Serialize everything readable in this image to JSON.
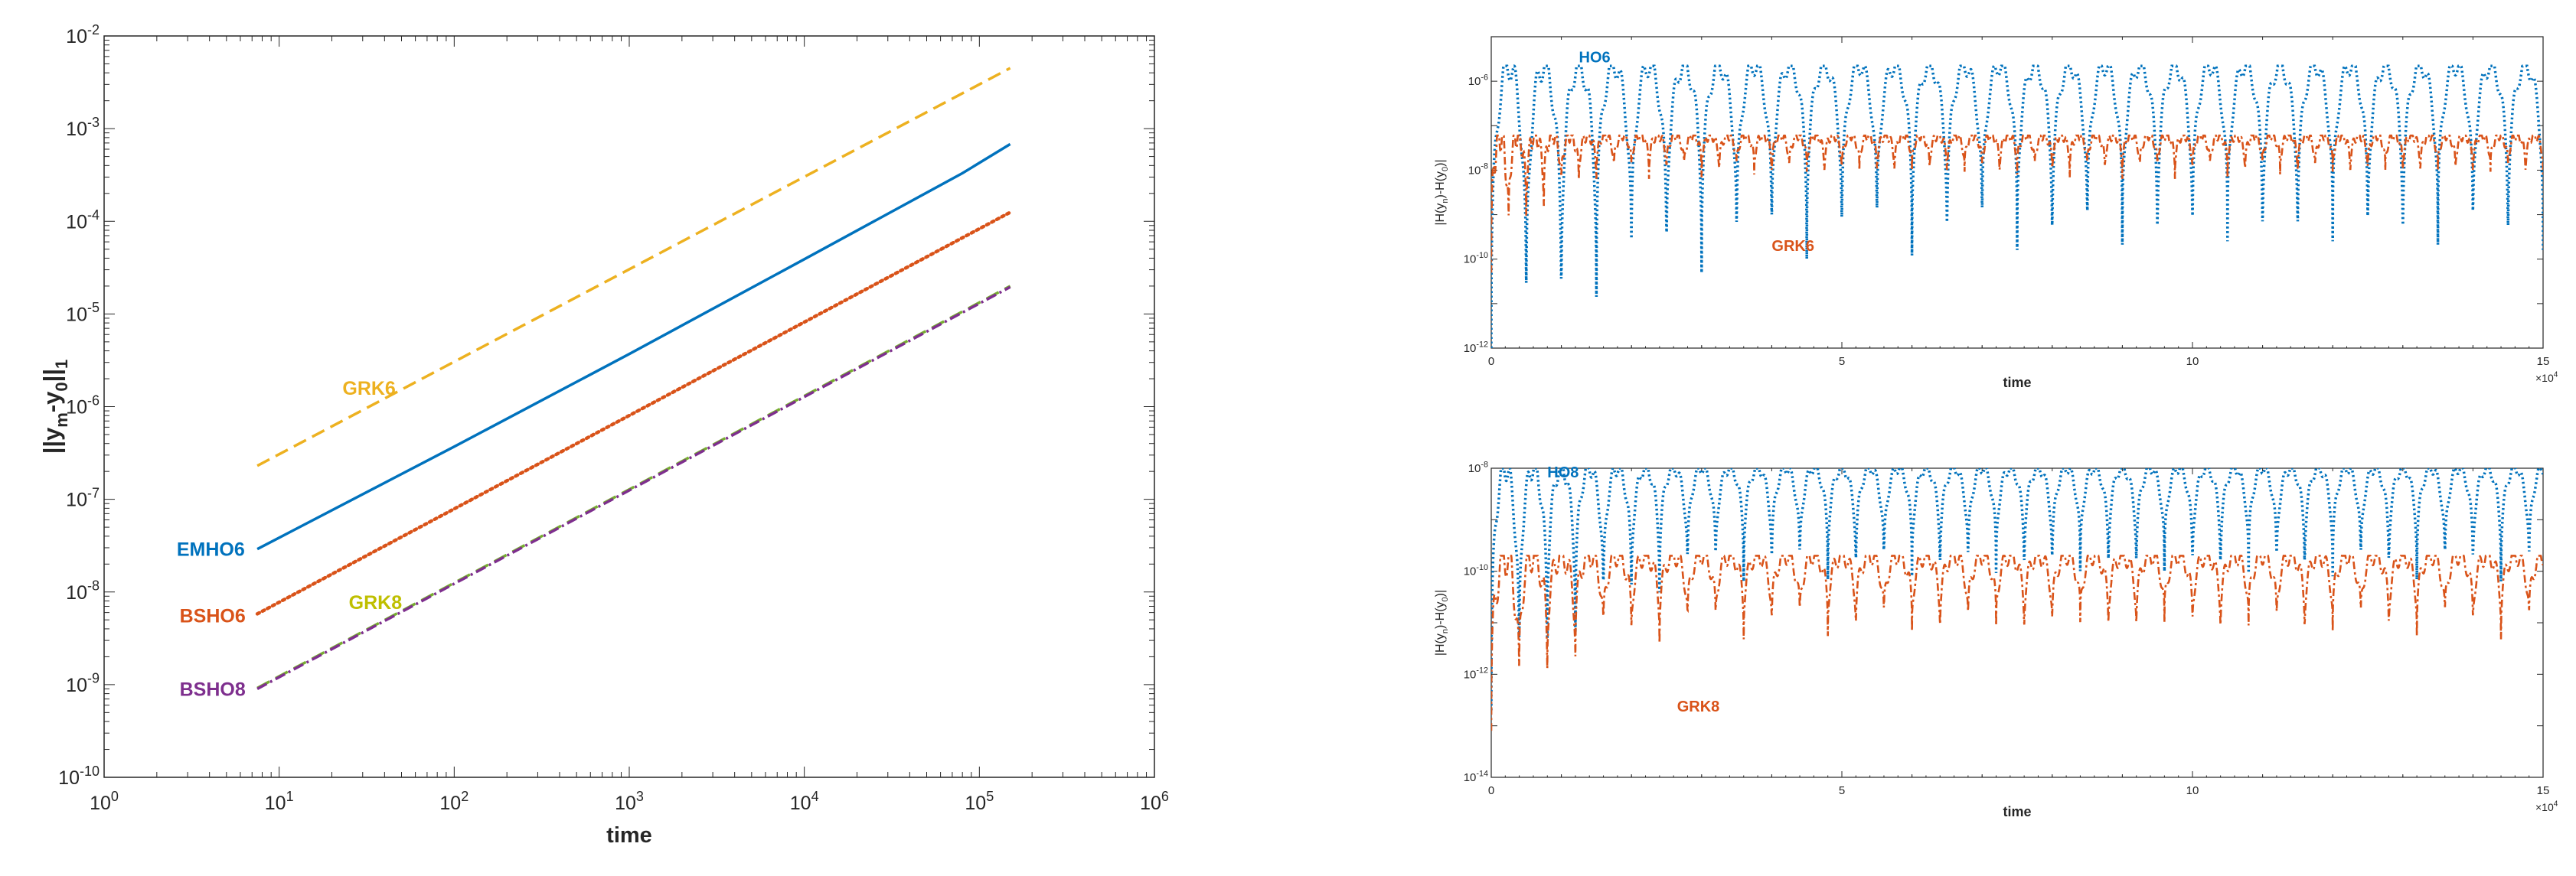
{
  "chart_data": [
    {
      "type": "line",
      "xscale": "log",
      "yscale": "log",
      "xlabel": "time",
      "ylabel_parts": [
        "||y",
        "m",
        "-y",
        "0",
        "||",
        "1"
      ],
      "xlim": [
        1,
        1000000
      ],
      "ylim": [
        1e-10,
        0.01
      ],
      "x_tick_labels": [
        [
          "10",
          "0"
        ],
        [
          "10",
          "1"
        ],
        [
          "10",
          "2"
        ],
        [
          "10",
          "3"
        ],
        [
          "10",
          "4"
        ],
        [
          "10",
          "5"
        ],
        [
          "10",
          "6"
        ]
      ],
      "y_tick_labels": [
        [
          "10",
          "-10"
        ],
        [
          "10",
          "-9"
        ],
        [
          "10",
          "-8"
        ],
        [
          "10",
          "-7"
        ],
        [
          "10",
          "-6"
        ],
        [
          "10",
          "-5"
        ],
        [
          "10",
          "-4"
        ],
        [
          "10",
          "-3"
        ],
        [
          "10",
          "-2"
        ]
      ],
      "series": [
        {
          "name": "GRK6",
          "label": "GRK6",
          "color": "#EDB120",
          "style": "dashed",
          "x": [
            7.5,
            150000
          ],
          "y": [
            2.3e-07,
            0.0045
          ],
          "label_x": 23,
          "label_y": 1.6e-06
        },
        {
          "name": "EMHO6",
          "label": "EMHO6",
          "color": "#0072BD",
          "style": "solid",
          "x": [
            7.5,
            100,
            1000,
            10000,
            80000,
            150000
          ],
          "y": [
            2.9e-08,
            3.7e-07,
            3.7e-06,
            3.9e-05,
            0.00033,
            0.00068
          ],
          "label_x": 2.6,
          "label_y": 2.9e-08
        },
        {
          "name": "BSHO6",
          "label": "BSHO6",
          "color": "#D95319",
          "style": "dotted",
          "x": [
            7.5,
            150000
          ],
          "y": [
            5.8e-09,
            0.000125
          ],
          "label_x": 2.7,
          "label_y": 5.6e-09
        },
        {
          "name": "GRK8",
          "label": "GRK8",
          "color": "#77AC30",
          "style": "dashed",
          "x": [
            7.5,
            150000
          ],
          "y": [
            9.2e-10,
            2e-05
          ],
          "label_x": 25,
          "label_y": 7.8e-09,
          "label_color": "#BFBF00"
        },
        {
          "name": "BSHO8",
          "label": "BSHO8",
          "color": "#7E2F8E",
          "style": "dashdot",
          "x": [
            7.5,
            150000
          ],
          "y": [
            9e-10,
            1.95e-05
          ],
          "label_x": 2.7,
          "label_y": 9e-10
        }
      ]
    },
    {
      "type": "line",
      "yscale": "log",
      "xlabel": "time",
      "ylabel": "|H(y_n)-H(y_0)|",
      "xlim": [
        0,
        150000
      ],
      "ylim": [
        1e-12,
        1e-05
      ],
      "x_tick_labels": [
        "0",
        "5",
        "10",
        "15"
      ],
      "x_multiplier": [
        "×10",
        "4"
      ],
      "y_tick_labels": [
        [
          "10",
          "-12"
        ],
        [
          "10",
          "-10"
        ],
        [
          "10",
          "-8"
        ],
        [
          "10",
          "-6"
        ]
      ],
      "series": [
        {
          "name": "HO6",
          "label": "HO6",
          "color": "#0072BD",
          "style": "dotted",
          "period": 5000,
          "peak": 2.2e-06,
          "min_values": [
            1e-12,
            2e-12,
            8e-12,
            2e-11,
            4e-11,
            6e-11,
            8e-11,
            1e-10,
            1.3e-10,
            1.6e-10
          ],
          "label_x": 12500,
          "label_y": 3.5e-06
        },
        {
          "name": "GRK6",
          "label": "GRK6",
          "color": "#D95319",
          "style": "dashdot",
          "period": 2500,
          "peak": 6e-08,
          "min_values": [
            5e-11,
            4e-10,
            1e-09,
            2e-09,
            3e-09,
            5e-09,
            8e-09
          ],
          "label_x": 40000,
          "label_y": 2e-10
        }
      ]
    },
    {
      "type": "line",
      "yscale": "log",
      "xlabel": "time",
      "ylabel": "|H(y_n)-H(y_0)|",
      "xlim": [
        0,
        150000
      ],
      "ylim": [
        1e-14,
        1e-08
      ],
      "x_tick_labels": [
        "0",
        "5",
        "10",
        "15"
      ],
      "x_multiplier": [
        "×10",
        "4"
      ],
      "y_tick_labels": [
        [
          "10",
          "-14"
        ],
        [
          "10",
          "-12"
        ],
        [
          "10",
          "-10"
        ],
        [
          "10",
          "-8"
        ]
      ],
      "series": [
        {
          "name": "HO8",
          "label": "HO8",
          "color": "#0072BD",
          "style": "dotted",
          "period": 4000,
          "peak": 1e-08,
          "min_values": [
            2e-13,
            1e-12,
            4e-12,
            8e-12,
            1.5e-11,
            3e-11,
            5e-11,
            8e-11
          ],
          "label_x": 8000,
          "label_y": 8.5e-09
        },
        {
          "name": "GRK8",
          "label": "GRK8",
          "color": "#D95319",
          "style": "dashdot",
          "period": 4000,
          "peak": 2e-10,
          "min_values": [
            8e-14,
            6e-13,
            1.5e-12,
            3e-12,
            4e-12,
            5e-12,
            6e-12,
            7e-12
          ],
          "label_x": 26500,
          "label_y": 2.4e-13
        }
      ]
    }
  ]
}
